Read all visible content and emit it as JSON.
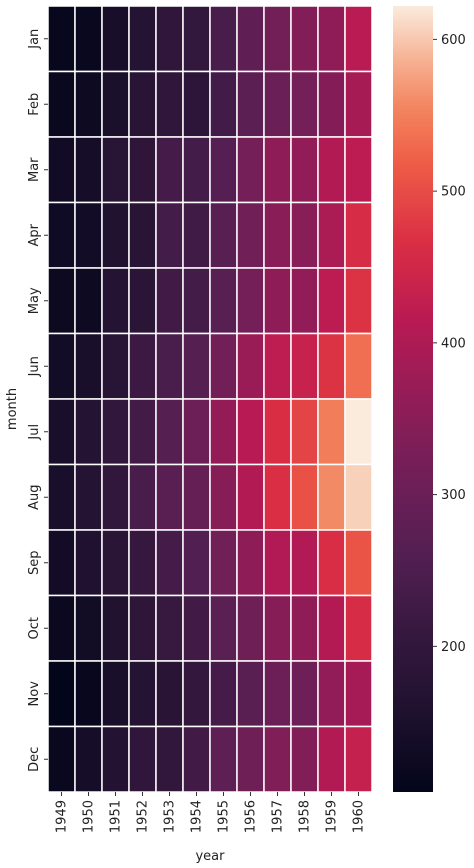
{
  "chart_data": {
    "type": "heatmap",
    "xlabel": "year",
    "ylabel": "month",
    "x": [
      "1949",
      "1950",
      "1951",
      "1952",
      "1953",
      "1954",
      "1955",
      "1956",
      "1957",
      "1958",
      "1959",
      "1960"
    ],
    "y": [
      "Jan",
      "Feb",
      "Mar",
      "Apr",
      "May",
      "Jun",
      "Jul",
      "Aug",
      "Sep",
      "Oct",
      "Nov",
      "Dec"
    ],
    "values": [
      [
        112,
        115,
        145,
        171,
        196,
        204,
        242,
        284,
        315,
        340,
        360,
        417
      ],
      [
        118,
        126,
        150,
        180,
        196,
        188,
        233,
        277,
        301,
        318,
        342,
        391
      ],
      [
        132,
        141,
        178,
        193,
        236,
        235,
        267,
        317,
        356,
        362,
        406,
        419
      ],
      [
        129,
        135,
        163,
        181,
        235,
        227,
        269,
        313,
        348,
        348,
        396,
        461
      ],
      [
        121,
        125,
        172,
        183,
        229,
        234,
        270,
        318,
        355,
        363,
        420,
        472
      ],
      [
        135,
        149,
        178,
        218,
        243,
        264,
        315,
        374,
        422,
        435,
        472,
        535
      ],
      [
        148,
        170,
        199,
        230,
        264,
        302,
        364,
        413,
        465,
        491,
        548,
        622
      ],
      [
        148,
        170,
        199,
        242,
        272,
        293,
        347,
        405,
        467,
        505,
        559,
        606
      ],
      [
        136,
        158,
        184,
        209,
        237,
        259,
        312,
        355,
        404,
        404,
        463,
        508
      ],
      [
        119,
        133,
        162,
        191,
        211,
        229,
        274,
        306,
        347,
        359,
        407,
        461
      ],
      [
        104,
        114,
        146,
        172,
        180,
        203,
        237,
        271,
        305,
        310,
        362,
        390
      ],
      [
        118,
        140,
        166,
        194,
        201,
        229,
        278,
        306,
        336,
        337,
        405,
        432
      ]
    ],
    "colorbar": {
      "ticks": [
        200,
        300,
        400,
        500,
        600
      ],
      "range": [
        104,
        622
      ],
      "colormap": "rocket"
    },
    "grid": true,
    "cell_border_color": "#ffffff"
  }
}
